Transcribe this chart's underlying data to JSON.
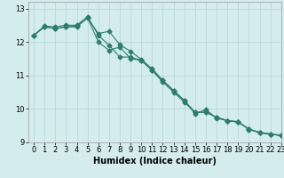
{
  "xlabel": "Humidex (Indice chaleur)",
  "xlim": [
    -0.5,
    23
  ],
  "ylim": [
    9,
    13.2
  ],
  "yticks": [
    9,
    10,
    11,
    12,
    13
  ],
  "xticks": [
    0,
    1,
    2,
    3,
    4,
    5,
    6,
    7,
    8,
    9,
    10,
    11,
    12,
    13,
    14,
    15,
    16,
    17,
    18,
    19,
    20,
    21,
    22,
    23
  ],
  "background_color": "#d4ecee",
  "grid_color": "#b8d8db",
  "line_color": "#2d7d6e",
  "line1_x": [
    0,
    1,
    2,
    3,
    4,
    5,
    6,
    7,
    8,
    9,
    10,
    11,
    12,
    13,
    14,
    15,
    16,
    17,
    18,
    19,
    20,
    21,
    22,
    23
  ],
  "line1_y": [
    12.2,
    12.48,
    12.45,
    12.5,
    12.5,
    12.75,
    12.2,
    11.9,
    11.55,
    11.55,
    11.45,
    11.15,
    10.85,
    10.55,
    10.25,
    9.9,
    9.9,
    9.75,
    9.65,
    9.6,
    9.4,
    9.28,
    9.25,
    9.2
  ],
  "line2_x": [
    0,
    1,
    2,
    3,
    4,
    5,
    6,
    7,
    8,
    9,
    10,
    11,
    12,
    13,
    14,
    15,
    16,
    17,
    18,
    19,
    20,
    21,
    22,
    23
  ],
  "line2_y": [
    12.2,
    12.45,
    12.4,
    12.45,
    12.45,
    12.72,
    12.0,
    11.75,
    11.85,
    11.5,
    11.45,
    11.15,
    10.8,
    10.5,
    10.2,
    9.9,
    9.9,
    9.75,
    9.65,
    9.62,
    9.4,
    9.3,
    9.25,
    9.22
  ],
  "line3_x": [
    0,
    1,
    2,
    3,
    4,
    5,
    6,
    7,
    8,
    9,
    10,
    11,
    12,
    13,
    14,
    15,
    16,
    17,
    18,
    19,
    20,
    21,
    22,
    23
  ],
  "line3_y": [
    12.2,
    12.45,
    12.4,
    12.45,
    12.48,
    12.72,
    12.25,
    12.32,
    11.92,
    11.72,
    11.48,
    11.2,
    10.85,
    10.55,
    10.25,
    9.85,
    9.98,
    9.72,
    9.65,
    9.62,
    9.38,
    9.3,
    9.25,
    9.2
  ],
  "xlabel_fontsize": 7,
  "tick_fontsize": 6
}
